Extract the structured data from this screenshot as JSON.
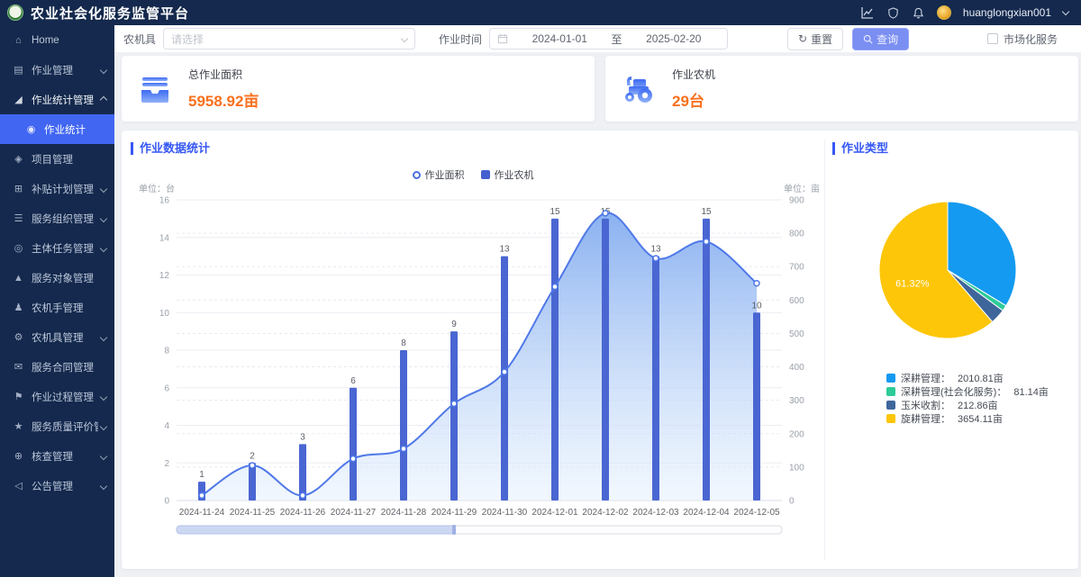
{
  "app": {
    "title": "农业社会化服务监管平台",
    "username": "huanglongxian001"
  },
  "header_icons": [
    "dashboard-chart-icon",
    "shield-icon",
    "bell-icon",
    "avatar",
    "caret-down-icon"
  ],
  "sidebar": {
    "items": [
      {
        "label": "Home",
        "icon": "home-icon",
        "glyph": "⌂"
      },
      {
        "label": "作业管理",
        "icon": "work-management-icon",
        "glyph": "▤",
        "expand": "down"
      },
      {
        "label": "作业统计管理",
        "icon": "work-statistics-management-icon",
        "glyph": "◢",
        "expand": "up",
        "open": true
      },
      {
        "label": "作业统计",
        "icon": "work-statistics-icon",
        "glyph": "◉",
        "child": true,
        "active": true
      },
      {
        "label": "项目管理",
        "icon": "project-management-icon",
        "glyph": "◈"
      },
      {
        "label": "补贴计划管理",
        "icon": "subsidy-plan-icon",
        "glyph": "⊞",
        "expand": "down"
      },
      {
        "label": "服务组织管理",
        "icon": "service-org-icon",
        "glyph": "☰",
        "expand": "down"
      },
      {
        "label": "主体任务管理",
        "icon": "main-task-icon",
        "glyph": "◎",
        "expand": "down"
      },
      {
        "label": "服务对象管理",
        "icon": "service-target-icon",
        "glyph": "▲"
      },
      {
        "label": "农机手管理",
        "icon": "driver-icon",
        "glyph": "♟"
      },
      {
        "label": "农机具管理",
        "icon": "machinery-icon",
        "glyph": "⚙",
        "expand": "down"
      },
      {
        "label": "服务合同管理",
        "icon": "contract-icon",
        "glyph": "✉"
      },
      {
        "label": "作业过程管理",
        "icon": "process-icon",
        "glyph": "⚑",
        "expand": "down"
      },
      {
        "label": "服务质量评价管理",
        "icon": "quality-rating-icon",
        "glyph": "★",
        "expand": "down"
      },
      {
        "label": "核查管理",
        "icon": "audit-icon",
        "glyph": "⊕",
        "expand": "down"
      },
      {
        "label": "公告管理",
        "icon": "notice-icon",
        "glyph": "◁",
        "expand": "down"
      }
    ]
  },
  "filters": {
    "machine_label": "农机具",
    "machine_placeholder": "请选择",
    "time_label": "作业时间",
    "date_start": "2024-01-01",
    "date_separator": "至",
    "date_end": "2025-02-20",
    "reset_label": "重置",
    "search_label": "查询",
    "market_checkbox_label": "市场化服务"
  },
  "stats": [
    {
      "label": "总作业面积",
      "value": "5958.92亩",
      "icon": "inbox-area-icon"
    },
    {
      "label": "作业农机",
      "value": "29台",
      "icon": "tractor-icon"
    }
  ],
  "chart_data": [
    {
      "type": "bar",
      "title": "作业数据统计",
      "categories": [
        "2024-11-24",
        "2024-11-25",
        "2024-11-26",
        "2024-11-27",
        "2024-11-28",
        "2024-11-29",
        "2024-11-30",
        "2024-12-01",
        "2024-12-02",
        "2024-12-03",
        "2024-12-04",
        "2024-12-05"
      ],
      "series": [
        {
          "name": "作业面积",
          "type": "area-line",
          "axis": "right",
          "unit": "亩",
          "values": [
            15,
            105,
            15,
            125,
            155,
            290,
            385,
            640,
            860,
            725,
            775,
            650
          ]
        },
        {
          "name": "作业农机",
          "type": "bar",
          "axis": "left",
          "unit": "台",
          "values": [
            1,
            2,
            3,
            6,
            8,
            9,
            13,
            15,
            15,
            13,
            15,
            10
          ]
        }
      ],
      "left_axis": {
        "label": "单位：台",
        "min": 0,
        "max": 16,
        "step": 2
      },
      "right_axis": {
        "label": "单位：亩",
        "min": 0,
        "max": 900,
        "step": 100
      },
      "legend": [
        "作业面积",
        "作业农机"
      ],
      "legend_position": "top-center",
      "grid": true,
      "colors": {
        "bar": "#4a66d2",
        "line": "#4f78e8",
        "area_top": "#84adf0",
        "area_bottom": "#e6f1fd"
      }
    },
    {
      "type": "pie",
      "title": "作业类型",
      "slices": [
        {
          "name": "深耕管理",
          "value": 2010.81,
          "unit": "亩",
          "color": "#149af0"
        },
        {
          "name": "深耕管理(社会化服务)",
          "value": 81.14,
          "unit": "亩",
          "color": "#2ecb98"
        },
        {
          "name": "玉米收割",
          "value": 212.86,
          "unit": "亩",
          "color": "#3f669b"
        },
        {
          "name": "旋耕管理",
          "value": 3654.11,
          "unit": "亩",
          "color": "#fdc608",
          "label": "61.32%"
        }
      ],
      "legend_position": "bottom-right"
    }
  ],
  "colors": {
    "navy": "#14294d",
    "active_blue": "#4166f2",
    "section_title_blue": "#3657f5",
    "value_orange": "#f9701d",
    "background": "#eef0f4"
  }
}
